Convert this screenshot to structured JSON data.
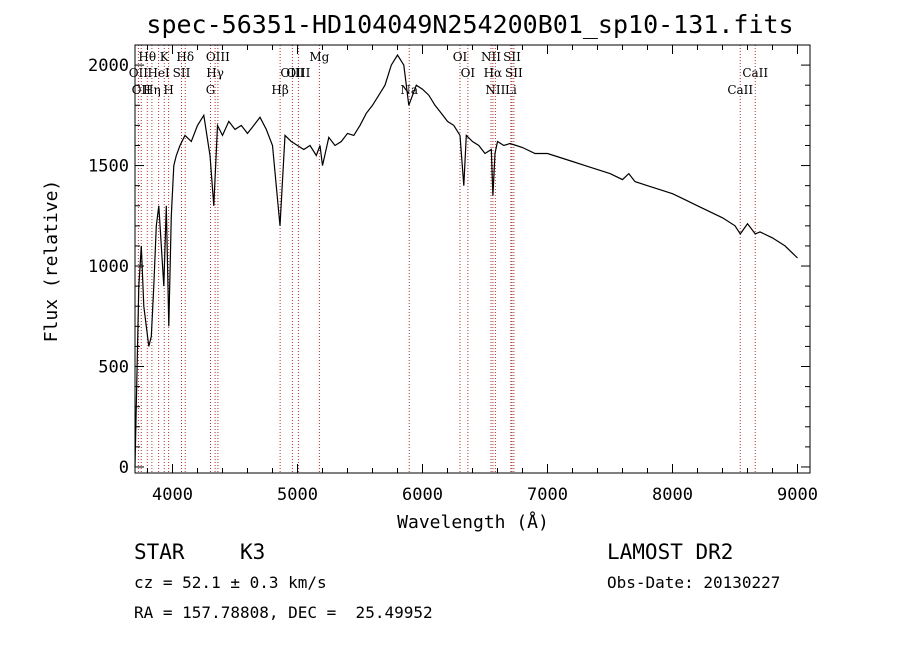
{
  "chart_data": {
    "type": "line",
    "title": "spec-56351-HD104049N254200B01_sp10-131.fits",
    "xlabel": "Wavelength (Å)",
    "ylabel": "Flux (relative)",
    "xlim": [
      3700,
      9100
    ],
    "ylim": [
      -30,
      2100
    ],
    "x_ticks": [
      4000,
      5000,
      6000,
      7000,
      8000,
      9000
    ],
    "y_ticks": [
      0,
      500,
      1000,
      1500,
      2000
    ],
    "grid": false,
    "series": [
      {
        "color": "#000000",
        "x": [
          3700,
          3730,
          3750,
          3770,
          3790,
          3810,
          3830,
          3850,
          3870,
          3890,
          3910,
          3930,
          3950,
          3970,
          3990,
          4010,
          4030,
          4060,
          4100,
          4150,
          4200,
          4250,
          4300,
          4330,
          4360,
          4400,
          4450,
          4500,
          4550,
          4600,
          4650,
          4700,
          4750,
          4800,
          4860,
          4900,
          4950,
          5000,
          5050,
          5100,
          5150,
          5180,
          5200,
          5250,
          5300,
          5350,
          5400,
          5450,
          5500,
          5550,
          5600,
          5650,
          5700,
          5750,
          5800,
          5850,
          5890,
          5950,
          6000,
          6050,
          6100,
          6150,
          6200,
          6250,
          6300,
          6330,
          6350,
          6400,
          6450,
          6500,
          6550,
          6563,
          6580,
          6600,
          6650,
          6700,
          6750,
          6800,
          6900,
          7000,
          7100,
          7200,
          7300,
          7400,
          7500,
          7600,
          7650,
          7700,
          7800,
          7900,
          8000,
          8100,
          8200,
          8300,
          8400,
          8500,
          8542,
          8600,
          8662,
          8700,
          8800,
          8900,
          9000
        ],
        "values": [
          0,
          900,
          1100,
          800,
          700,
          600,
          650,
          900,
          1200,
          1300,
          1100,
          900,
          1300,
          700,
          1250,
          1500,
          1550,
          1600,
          1650,
          1620,
          1700,
          1750,
          1550,
          1300,
          1700,
          1650,
          1720,
          1680,
          1700,
          1660,
          1700,
          1740,
          1680,
          1600,
          1200,
          1650,
          1620,
          1600,
          1580,
          1600,
          1550,
          1600,
          1500,
          1640,
          1600,
          1620,
          1660,
          1650,
          1700,
          1760,
          1800,
          1850,
          1900,
          2000,
          2050,
          2000,
          1800,
          1900,
          1880,
          1850,
          1800,
          1760,
          1720,
          1700,
          1650,
          1400,
          1650,
          1620,
          1600,
          1560,
          1580,
          1350,
          1560,
          1620,
          1600,
          1610,
          1600,
          1590,
          1560,
          1560,
          1540,
          1520,
          1500,
          1480,
          1460,
          1430,
          1460,
          1420,
          1400,
          1380,
          1360,
          1330,
          1300,
          1270,
          1240,
          1200,
          1160,
          1210,
          1160,
          1170,
          1140,
          1100,
          1040
        ]
      }
    ],
    "reference_lines": [
      {
        "wavelength": 3727,
        "label": "OII",
        "row": 2
      },
      {
        "wavelength": 3750,
        "label": "OII",
        "row": 3
      },
      {
        "wavelength": 3798,
        "label": "Hθ",
        "row": 1
      },
      {
        "wavelength": 3835,
        "label": "Hη",
        "row": 3
      },
      {
        "wavelength": 3889,
        "label": "HeI",
        "row": 2
      },
      {
        "wavelength": 3934,
        "label": "K",
        "row": 1
      },
      {
        "wavelength": 3969,
        "label": "H",
        "row": 3
      },
      {
        "wavelength": 4072,
        "label": "SII",
        "row": 2
      },
      {
        "wavelength": 4102,
        "label": "Hδ",
        "row": 1
      },
      {
        "wavelength": 4304,
        "label": "G",
        "row": 3
      },
      {
        "wavelength": 4341,
        "label": "Hγ",
        "row": 2
      },
      {
        "wavelength": 4363,
        "label": "OIII",
        "row": 1
      },
      {
        "wavelength": 4861,
        "label": "Hβ",
        "row": 3
      },
      {
        "wavelength": 4959,
        "label": "OIII",
        "row": 2
      },
      {
        "wavelength": 5007,
        "label": "OIII",
        "row": 2
      },
      {
        "wavelength": 5175,
        "label": "Mg",
        "row": 1
      },
      {
        "wavelength": 5894,
        "label": "Na",
        "row": 3
      },
      {
        "wavelength": 6300,
        "label": "OI",
        "row": 1
      },
      {
        "wavelength": 6363,
        "label": "OI",
        "row": 2
      },
      {
        "wavelength": 6548,
        "label": "NII",
        "row": 1
      },
      {
        "wavelength": 6563,
        "label": "Hα",
        "row": 2
      },
      {
        "wavelength": 6583,
        "label": "NII",
        "row": 3
      },
      {
        "wavelength": 6716,
        "label": "SII",
        "row": 1
      },
      {
        "wavelength": 6731,
        "label": "SII",
        "row": 2
      },
      {
        "wavelength": 6707,
        "label": "Li",
        "row": 3
      },
      {
        "wavelength": 8542,
        "label": "CaII",
        "row": 3
      },
      {
        "wavelength": 8662,
        "label": "CaII",
        "row": 2
      }
    ]
  },
  "info": {
    "class_label": "STAR",
    "subclass": "K3",
    "survey": "LAMOST DR2",
    "cz": "cz = 52.1 ± 0.3 km/s",
    "obs_date": "Obs-Date: 20130227",
    "coords": "RA = 157.78808, DEC =  25.49952"
  }
}
